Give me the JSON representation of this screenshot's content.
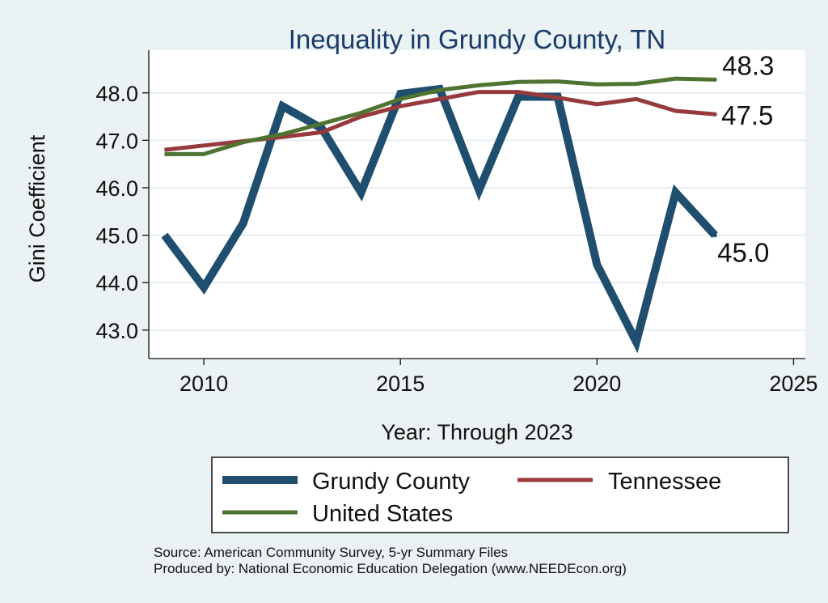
{
  "chart_data": {
    "type": "line",
    "title": "Inequality in Grundy County, TN",
    "xlabel": "Year: Through 2023",
    "ylabel": "Gini Coefficient",
    "xlim": [
      2008.6,
      2025.3
    ],
    "ylim": [
      42.4,
      48.9
    ],
    "xticks": [
      2010,
      2015,
      2020,
      2025
    ],
    "yticks": [
      43.0,
      44.0,
      45.0,
      46.0,
      47.0,
      48.0
    ],
    "ytick_labels": [
      "43.0",
      "44.0",
      "45.0",
      "46.0",
      "47.0",
      "48.0"
    ],
    "grid": true,
    "x": [
      2009,
      2010,
      2011,
      2012,
      2013,
      2014,
      2015,
      2016,
      2017,
      2018,
      2019,
      2020,
      2021,
      2022,
      2023
    ],
    "series": [
      {
        "name": "Grundy County",
        "color": "#1f4e6e",
        "values": [
          45.0,
          43.9,
          45.25,
          47.72,
          47.25,
          45.9,
          47.98,
          48.08,
          45.95,
          47.92,
          47.92,
          44.38,
          42.75,
          45.9,
          45.0
        ],
        "end_label": "45.0"
      },
      {
        "name": "Tennessee",
        "color": "#963a3e",
        "values": [
          46.8,
          46.89,
          46.98,
          47.07,
          47.17,
          47.5,
          47.72,
          47.87,
          48.02,
          48.02,
          47.9,
          47.76,
          47.87,
          47.62,
          47.55
        ],
        "end_label": "47.5"
      },
      {
        "name": "United States",
        "color": "#4f7431",
        "values": [
          46.71,
          46.71,
          46.96,
          47.13,
          47.35,
          47.58,
          47.87,
          48.06,
          48.16,
          48.23,
          48.24,
          48.18,
          48.19,
          48.3,
          48.28
        ],
        "end_label": "48.3"
      }
    ],
    "legend": {
      "position": "bottom",
      "items": [
        "Grundy County",
        "Tennessee",
        "United States"
      ]
    },
    "source_lines": [
      "Source: American Community Survey, 5-yr Summary Files",
      "Produced by: National Economic Education Delegation (www.NEEDEcon.org)"
    ]
  },
  "colors": {
    "background": "#eaf2f3",
    "plot_background": "#ffffff",
    "grid": "#e6eef1",
    "title": "#1a3a6b"
  }
}
